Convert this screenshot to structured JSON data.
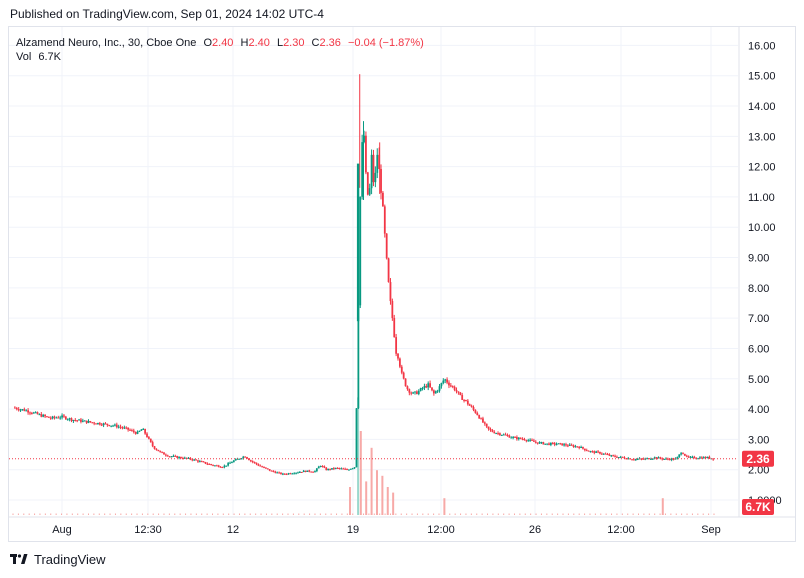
{
  "header": {
    "published": "Published on TradingView.com, Sep 01, 2024 14:02 UTC-4"
  },
  "legend": {
    "symbol": "Alzamend Neuro, Inc., 30, Cboe One",
    "o_label": "O",
    "o_value": "2.40",
    "h_label": "H",
    "h_value": "2.40",
    "l_label": "L",
    "l_value": "2.30",
    "c_label": "C",
    "c_value": "2.36",
    "change": "−0.04 (−1.87%)",
    "vol_label": "Vol",
    "vol_value": "6.7K"
  },
  "footer": {
    "brand": "TradingView"
  },
  "colors": {
    "up": "#089981",
    "down": "#f23645",
    "vol_up": "#9ad8cd",
    "vol_down": "#f7a9a7",
    "grid": "#f0f3fa",
    "price_line": "#f23645"
  },
  "chart_data": {
    "type": "candlestick",
    "symbol": "Alzamend Neuro, Inc.",
    "interval": "30",
    "yticks": [
      "16.00",
      "15.00",
      "14.00",
      "13.00",
      "12.00",
      "11.00",
      "10.00",
      "9.00",
      "8.00",
      "7.00",
      "6.00",
      "5.00",
      "4.00",
      "3.00",
      "2.00",
      "1.0000"
    ],
    "xticks": [
      "Aug",
      "12:30",
      "12",
      "19",
      "12:00",
      "26",
      "12:00",
      "Sep"
    ],
    "ylim": [
      0.1,
      16.5
    ],
    "last_price": "2.36",
    "last_volume": "6.7K",
    "price_path": [
      [
        0,
        4.05
      ],
      [
        5,
        3.95
      ],
      [
        10,
        3.8
      ],
      [
        14,
        3.7
      ],
      [
        18,
        3.75
      ],
      [
        22,
        3.65
      ],
      [
        26,
        3.6
      ],
      [
        30,
        3.55
      ],
      [
        34,
        3.5
      ],
      [
        38,
        3.45
      ],
      [
        42,
        3.35
      ],
      [
        46,
        3.2
      ],
      [
        48,
        3.35
      ],
      [
        50,
        3.05
      ],
      [
        52,
        2.75
      ],
      [
        55,
        2.55
      ],
      [
        58,
        2.45
      ],
      [
        62,
        2.4
      ],
      [
        66,
        2.35
      ],
      [
        70,
        2.25
      ],
      [
        74,
        2.15
      ],
      [
        78,
        2.1
      ],
      [
        82,
        2.3
      ],
      [
        86,
        2.45
      ],
      [
        88,
        2.3
      ],
      [
        92,
        2.1
      ],
      [
        96,
        1.95
      ],
      [
        100,
        1.85
      ],
      [
        104,
        1.9
      ],
      [
        108,
        1.95
      ],
      [
        112,
        1.95
      ],
      [
        114,
        2.15
      ],
      [
        116,
        2.0
      ],
      [
        120,
        2.05
      ],
      [
        124,
        2.0
      ],
      [
        127,
        2.1
      ],
      [
        128,
        7.0
      ],
      [
        129,
        12.0
      ],
      [
        130,
        13.4
      ],
      [
        131,
        11.5
      ],
      [
        132,
        10.8
      ],
      [
        133,
        12.3
      ],
      [
        134,
        11.2
      ],
      [
        135,
        12.5
      ],
      [
        136,
        11.7
      ],
      [
        137,
        10.8
      ],
      [
        138,
        9.6
      ],
      [
        139,
        8.4
      ],
      [
        140,
        7.5
      ],
      [
        141,
        6.8
      ],
      [
        142,
        5.9
      ],
      [
        143,
        5.7
      ],
      [
        144,
        5.2
      ],
      [
        146,
        4.7
      ],
      [
        148,
        4.5
      ],
      [
        150,
        4.55
      ],
      [
        152,
        4.7
      ],
      [
        154,
        4.8
      ],
      [
        156,
        4.5
      ],
      [
        158,
        4.7
      ],
      [
        160,
        5.0
      ],
      [
        162,
        4.8
      ],
      [
        164,
        4.65
      ],
      [
        166,
        4.4
      ],
      [
        168,
        4.25
      ],
      [
        170,
        4.05
      ],
      [
        172,
        3.85
      ],
      [
        174,
        3.6
      ],
      [
        176,
        3.35
      ],
      [
        178,
        3.25
      ],
      [
        182,
        3.15
      ],
      [
        186,
        3.05
      ],
      [
        190,
        3.0
      ],
      [
        194,
        2.9
      ],
      [
        198,
        2.85
      ],
      [
        202,
        2.85
      ],
      [
        206,
        2.8
      ],
      [
        210,
        2.75
      ],
      [
        214,
        2.6
      ],
      [
        218,
        2.55
      ],
      [
        222,
        2.45
      ],
      [
        226,
        2.4
      ],
      [
        230,
        2.35
      ],
      [
        234,
        2.35
      ],
      [
        238,
        2.4
      ],
      [
        242,
        2.35
      ],
      [
        246,
        2.35
      ],
      [
        248,
        2.6
      ],
      [
        250,
        2.4
      ],
      [
        254,
        2.4
      ],
      [
        258,
        2.4
      ],
      [
        260,
        2.36
      ]
    ],
    "volume_spikes": [
      {
        "t": 125,
        "v": 1.0,
        "up": false
      },
      {
        "t": 128,
        "v": 4.2,
        "up": true
      },
      {
        "t": 129,
        "v": 3.0,
        "up": false
      },
      {
        "t": 131,
        "v": 1.2,
        "up": false
      },
      {
        "t": 133,
        "v": 2.4,
        "up": false
      },
      {
        "t": 135,
        "v": 1.6,
        "up": false
      },
      {
        "t": 137,
        "v": 1.4,
        "up": false
      },
      {
        "t": 139,
        "v": 1.0,
        "up": false
      },
      {
        "t": 141,
        "v": 0.8,
        "up": false
      },
      {
        "t": 160,
        "v": 0.6,
        "up": false
      },
      {
        "t": 241,
        "v": 0.6,
        "up": false
      }
    ]
  }
}
